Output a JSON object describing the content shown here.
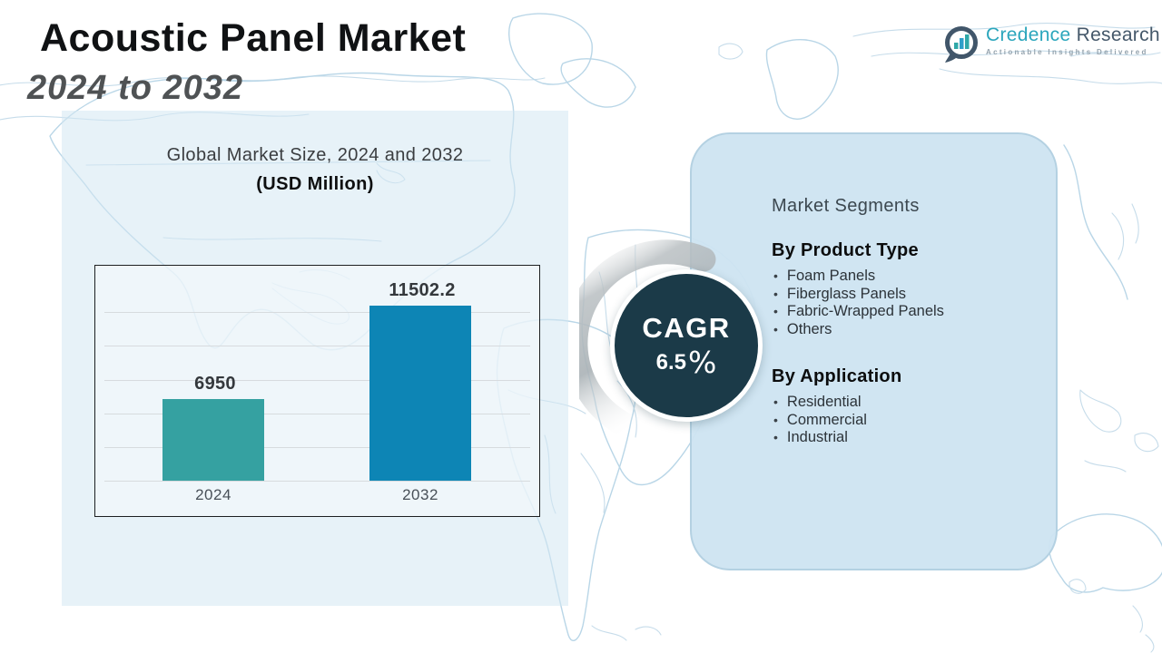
{
  "header": {
    "title": "Acoustic Panel Market",
    "subtitle": "2024 to 2032"
  },
  "logo": {
    "brand_primary": "Credence",
    "brand_secondary": "Research",
    "tagline": "Actionable Insights Delivered",
    "icon": "bar-chart-bubble-icon",
    "accent_teal": "#2ba6bc",
    "accent_dark": "#45586a"
  },
  "chart": {
    "title": "Global Market Size, 2024 and 2032",
    "units_label": "(USD Million)"
  },
  "chart_data": {
    "type": "bar",
    "title": "Global Market Size, 2024 and 2032",
    "ylabel": "USD Million",
    "categories": [
      "2024",
      "2032"
    ],
    "values": [
      6950,
      11502.2
    ],
    "bar_colors": [
      "#35a1a1",
      "#0d85b5"
    ],
    "ylim": [
      3000,
      13000
    ],
    "grid": true,
    "legend": false
  },
  "cagr": {
    "label": "CAGR",
    "value": "6.5",
    "unit": "%",
    "circle_color": "#1b3a48"
  },
  "segments": {
    "title": "Market Segments",
    "groups": [
      {
        "heading": "By Product Type",
        "items": [
          "Foam Panels",
          "Fiberglass Panels",
          "Fabric-Wrapped Panels",
          "Others"
        ]
      },
      {
        "heading": "By Application",
        "items": [
          "Residential",
          "Commercial",
          "Industrial"
        ]
      }
    ]
  }
}
